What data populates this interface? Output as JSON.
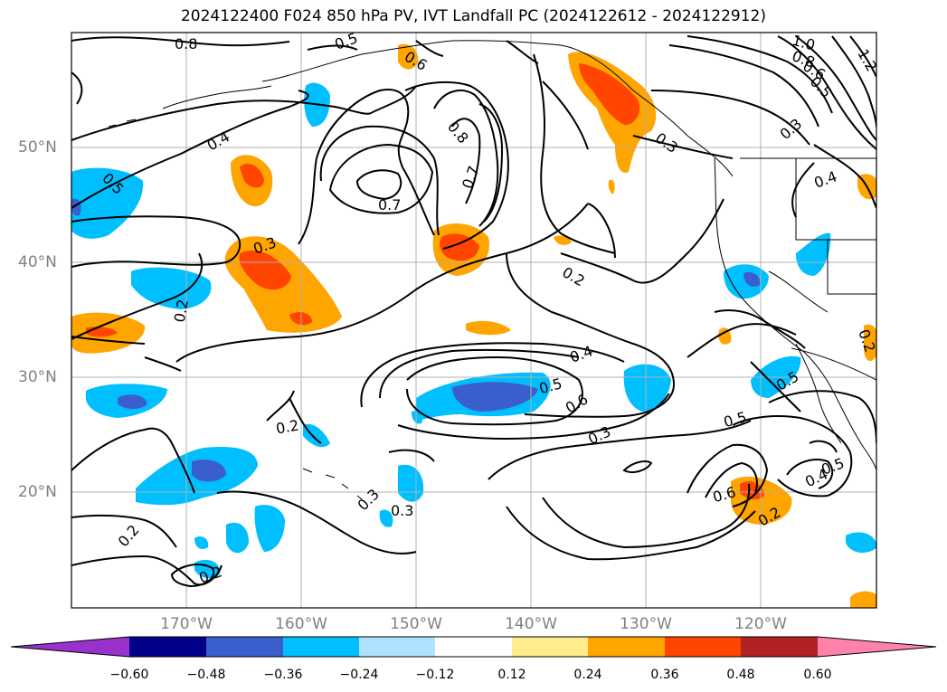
{
  "title": "2024122400 F024 850 hPa PV, IVT Landfall PC (2024122612 - 2024122912)",
  "lat_labels": [
    "50°N",
    "40°N",
    "30°N",
    "20°N"
  ],
  "lon_labels": [
    "170°W",
    "160°W",
    "150°W",
    "140°W",
    "130°W",
    "120°W"
  ],
  "colorbar": {
    "colors": [
      "#9932cc",
      "#00008b",
      "#3a5fcd",
      "#00bfff",
      "#b0e2ff",
      "#ffffff",
      "#ffec8b",
      "#ffa500",
      "#ff4500",
      "#b22222",
      "#ff82ab"
    ],
    "ticks": [
      "−0.60",
      "−0.48",
      "−0.36",
      "−0.24",
      "−0.12",
      "0.12",
      "0.24",
      "0.36",
      "0.48",
      "0.60"
    ]
  },
  "contour_labels": [
    "0.8",
    "0.5",
    "0.6",
    "0.4",
    "0.5",
    "0.7",
    "0.8",
    "0.7",
    "0.3",
    "0.2",
    "0.2",
    "0.4",
    "0.5",
    "0.6",
    "0.3",
    "0.2",
    "0.3",
    "0.3",
    "0.2",
    "0.2",
    "0.5",
    "0.5",
    "0.4",
    "0.5",
    "0.6",
    "0.2",
    "1.0",
    "0.8",
    "0.6",
    "0.5",
    "1.2",
    "0.3",
    "0.3",
    "0.4",
    "0.2"
  ]
}
